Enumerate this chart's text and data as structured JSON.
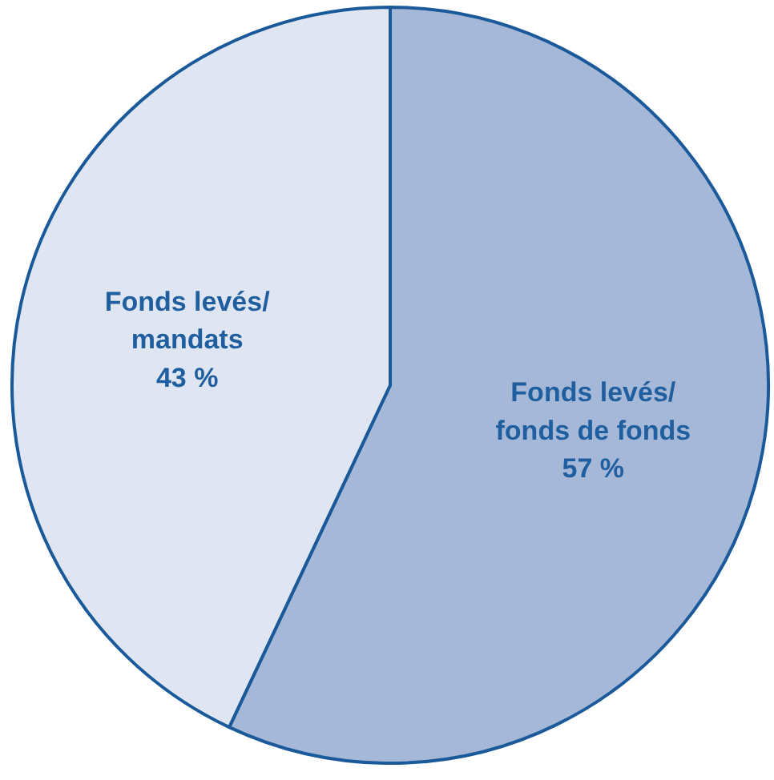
{
  "chart_data": {
    "type": "pie",
    "categories": [
      "Fonds levés/\nfonds de fonds",
      "Fonds levés/\nmandats"
    ],
    "values": [
      57,
      43
    ],
    "colors": [
      "#a6b8d8",
      "#dfe5f1"
    ],
    "value_labels": [
      "57 %",
      "43 %"
    ]
  }
}
